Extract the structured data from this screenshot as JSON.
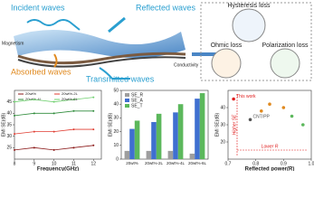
{
  "diagram": {
    "incident": "Incident waves",
    "reflected": "Reflected waves",
    "absorbed": "Absorbed waves",
    "transmitted": "Transmitted waves",
    "magnetism": "Magnetism",
    "conductivity": "Conductivity",
    "hysteresis": "Hysteresis loss",
    "ohmic": "Ohmic loss",
    "polarization": "Polarization loss"
  },
  "chart_data": [
    {
      "type": "line",
      "xlabel": "Frequency(GHz)",
      "ylabel": "EMI SE(dB)",
      "x": [
        8,
        9,
        10,
        11,
        12
      ],
      "xlim": [
        8,
        12.4
      ],
      "xticks": [
        8,
        9,
        10,
        11,
        12
      ],
      "ylim": [
        20,
        50
      ],
      "yticks": [
        25,
        30,
        35,
        40,
        45
      ],
      "series": [
        {
          "name": "20wt%",
          "color": "#8b1a1a",
          "values": [
            24,
            25,
            24,
            25,
            26
          ]
        },
        {
          "name": "20wt%-2L",
          "color": "#e03c31",
          "values": [
            31,
            32,
            32,
            33,
            33
          ]
        },
        {
          "name": "20wt%-4L",
          "color": "#2e8b3a",
          "values": [
            39,
            40,
            40,
            41,
            41
          ]
        },
        {
          "name": "20wt%-6L",
          "color": "#6fd06f",
          "values": [
            45,
            46,
            45,
            46,
            47
          ]
        }
      ]
    },
    {
      "type": "bar",
      "ylabel": "EMI SE(dB)",
      "categories": [
        "20wt%",
        "20wt%-2L",
        "20wt%-4L",
        "20wt%-6L"
      ],
      "ylim": [
        0,
        50
      ],
      "yticks": [
        0,
        10,
        20,
        30,
        40,
        50
      ],
      "series": [
        {
          "name": "SE_R",
          "color": "#9e9e9e",
          "values": [
            6,
            6,
            6,
            4
          ]
        },
        {
          "name": "SE_A",
          "color": "#3f6fd0",
          "values": [
            22,
            27,
            34,
            44
          ]
        },
        {
          "name": "SE_T",
          "color": "#5cb85c",
          "values": [
            28,
            33,
            40,
            48
          ]
        }
      ]
    },
    {
      "type": "scatter",
      "xlabel": "Reflected power(R)",
      "ylabel": "EMI SE(dB)",
      "xlim": [
        0.7,
        1.0
      ],
      "xticks": [
        0.7,
        0.8,
        0.9,
        {
          "value": 1,
          "label": "1.0"
        }
      ],
      "ylim": [
        10,
        50
      ],
      "yticks": [
        20,
        30,
        40
      ],
      "x": [
        0.72,
        0.78,
        0.82,
        0.85,
        0.9,
        0.93,
        0.97
      ],
      "values": [
        45,
        33,
        38,
        42,
        40,
        35,
        30
      ],
      "labels": [
        "This work",
        "CNT/PP",
        null,
        null,
        null,
        null,
        null
      ],
      "colors": [
        "#e02020",
        "#555555",
        "#e08a20",
        "#e08a20",
        "#e08a20",
        "#5cb85c",
        "#5cb85c"
      ],
      "annotations": [
        "Lower R",
        "Higher SE"
      ]
    }
  ]
}
